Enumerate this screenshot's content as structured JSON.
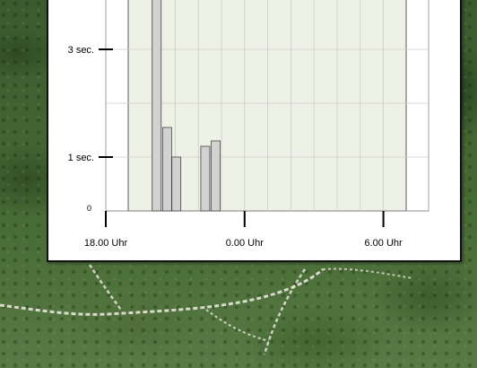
{
  "chart_data": {
    "type": "bar",
    "title": "",
    "xlabel": "",
    "ylabel": "",
    "y_ticks": [
      {
        "value": 0,
        "label": "0"
      },
      {
        "value": 1,
        "label": "1 sec."
      },
      {
        "value": 3,
        "label": "3 sec."
      }
    ],
    "x_ticks": [
      {
        "hour": 18,
        "label": "18.00 Uhr"
      },
      {
        "hour": 24,
        "label": "0.00 Uhr"
      },
      {
        "hour": 30,
        "label": "6.00 Uhr"
      }
    ],
    "bars": [
      {
        "hour": 20.2,
        "value": 4.3
      },
      {
        "hour": 20.65,
        "value": 1.55
      },
      {
        "hour": 21.05,
        "value": 1.0
      },
      {
        "hour": 22.3,
        "value": 1.2
      },
      {
        "hour": 22.75,
        "value": 1.3
      }
    ],
    "grid": true,
    "colors": {
      "plot_area": "#eef2e6",
      "bar_fill": "#d2d2d2",
      "bar_stroke": "#444444",
      "grid": "#cccccc"
    }
  }
}
